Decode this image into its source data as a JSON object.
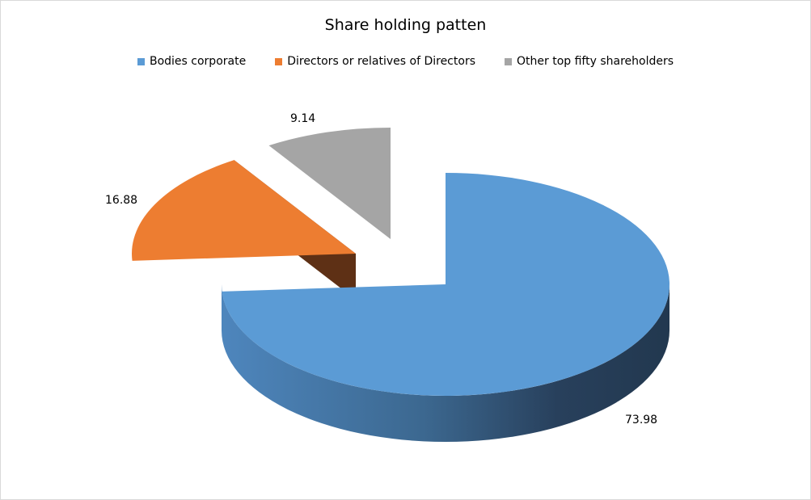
{
  "chart_data": {
    "type": "pie",
    "style": "3d-exploded",
    "title": "Share holding patten",
    "legend_position": "top",
    "slices": [
      {
        "name": "Bodies corporate",
        "value": 73.98,
        "label": "73.98",
        "color": "#5b9bd5",
        "side_color": "#2a4a6a"
      },
      {
        "name": "Directors or relatives of Directors",
        "value": 16.88,
        "label": "16.88",
        "color": "#ed7d31",
        "side_color": "#5e3015"
      },
      {
        "name": "Other top fifty shareholders",
        "value": 9.14,
        "label": "9.14",
        "color": "#a5a5a5",
        "side_color": "#404040"
      }
    ]
  }
}
